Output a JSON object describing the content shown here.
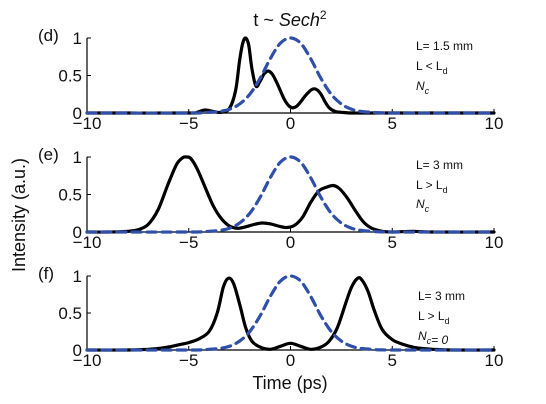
{
  "figure": {
    "title_prefix": "t ~ ",
    "title_italic": "Sech",
    "title_sup": "2",
    "ylabel": "Intensity (a.u.)",
    "xlabel": "Time (ps)"
  },
  "colors": {
    "solid": "#000000",
    "dashed": "#2f4fa8",
    "axis": "#000000"
  },
  "chart_data": [
    {
      "type": "line",
      "panel_label": "(d)",
      "annotation": [
        {
          "parts": [
            {
              "t": "L= 1.5 mm"
            }
          ]
        },
        {
          "parts": [
            {
              "t": "L < L"
            },
            {
              "t": "d",
              "sub": true
            }
          ]
        },
        {
          "parts": [
            {
              "t": "N",
              "italic": true
            },
            {
              "t": "c",
              "sub": true,
              "italic": true
            }
          ]
        }
      ],
      "xlim": [
        -10,
        10
      ],
      "ylim": [
        0,
        1
      ],
      "xticks": [
        -10,
        -5,
        0,
        5,
        10
      ],
      "yticks": [
        0,
        0.5,
        1
      ],
      "xtick_labels": [
        "−10",
        "−5",
        "0",
        "5",
        "10"
      ],
      "ytick_labels": [
        "0",
        "0.5",
        "1"
      ],
      "series": [
        {
          "style": "solid",
          "x": [
            -10,
            -5,
            -4.6,
            -4.2,
            -3.8,
            -3.4,
            -3.0,
            -2.7,
            -2.5,
            -2.35,
            -2.2,
            -2.05,
            -1.9,
            -1.7,
            -1.5,
            -1.3,
            -1.1,
            -0.9,
            -0.7,
            -0.5,
            -0.3,
            -0.1,
            0.1,
            0.3,
            0.5,
            0.7,
            0.9,
            1.1,
            1.3,
            1.5,
            1.7,
            1.9,
            2.2,
            2.5,
            3,
            4,
            10
          ],
          "y": [
            0,
            0,
            0.01,
            0.04,
            0.02,
            0.01,
            0.06,
            0.3,
            0.7,
            0.93,
            1.0,
            0.9,
            0.6,
            0.36,
            0.42,
            0.52,
            0.56,
            0.52,
            0.42,
            0.3,
            0.18,
            0.1,
            0.07,
            0.09,
            0.15,
            0.22,
            0.28,
            0.32,
            0.31,
            0.25,
            0.15,
            0.07,
            0.02,
            0.01,
            0,
            0,
            0
          ]
        },
        {
          "style": "dashed",
          "x": [
            -10,
            -5,
            -4,
            -3.5,
            -3,
            -2.5,
            -2,
            -1.5,
            -1,
            -0.5,
            0,
            0.5,
            1,
            1.5,
            2,
            2.5,
            3,
            3.5,
            4,
            5,
            10
          ],
          "y": [
            0,
            0,
            0.01,
            0.02,
            0.05,
            0.12,
            0.25,
            0.46,
            0.72,
            0.93,
            1.0,
            0.93,
            0.72,
            0.46,
            0.25,
            0.12,
            0.05,
            0.02,
            0.01,
            0,
            0
          ]
        }
      ]
    },
    {
      "type": "line",
      "panel_label": "(e)",
      "annotation": [
        {
          "parts": [
            {
              "t": "L= 3 mm"
            }
          ]
        },
        {
          "parts": [
            {
              "t": "L > L"
            },
            {
              "t": "d",
              "sub": true
            }
          ]
        },
        {
          "parts": [
            {
              "t": "N",
              "italic": true
            },
            {
              "t": "c",
              "sub": true,
              "italic": true
            }
          ]
        }
      ],
      "xlim": [
        -10,
        10
      ],
      "ylim": [
        0,
        1
      ],
      "xticks": [
        -10,
        -5,
        0,
        5,
        10
      ],
      "yticks": [
        0,
        0.5,
        1
      ],
      "xtick_labels": [
        "−10",
        "−5",
        "0",
        "5",
        "10"
      ],
      "ytick_labels": [
        "0",
        "0.5",
        "1"
      ],
      "series": [
        {
          "style": "solid",
          "x": [
            -10,
            -9,
            -8,
            -7.5,
            -7,
            -6.5,
            -6,
            -5.6,
            -5.3,
            -5.1,
            -4.9,
            -4.6,
            -4.2,
            -3.8,
            -3.4,
            -3,
            -2.6,
            -2.2,
            -1.8,
            -1.4,
            -1.0,
            -0.6,
            -0.2,
            0.2,
            0.6,
            1.0,
            1.4,
            1.8,
            2.1,
            2.4,
            2.8,
            3.2,
            3.6,
            4,
            4.5,
            5,
            6,
            7,
            10
          ],
          "y": [
            0,
            0,
            0.01,
            0.03,
            0.1,
            0.3,
            0.65,
            0.9,
            0.99,
            1.0,
            0.98,
            0.85,
            0.6,
            0.35,
            0.18,
            0.08,
            0.05,
            0.07,
            0.1,
            0.12,
            0.11,
            0.08,
            0.06,
            0.09,
            0.2,
            0.4,
            0.55,
            0.6,
            0.62,
            0.58,
            0.45,
            0.28,
            0.13,
            0.05,
            0.01,
            0,
            0.01,
            0,
            0
          ]
        },
        {
          "style": "dashed",
          "x": [
            -10,
            -5,
            -4,
            -3.5,
            -3,
            -2.5,
            -2,
            -1.5,
            -1,
            -0.5,
            0,
            0.5,
            1,
            1.5,
            2,
            2.5,
            3,
            3.5,
            4,
            5,
            10
          ],
          "y": [
            0,
            0,
            0.01,
            0.02,
            0.05,
            0.12,
            0.25,
            0.46,
            0.72,
            0.93,
            1.0,
            0.93,
            0.72,
            0.46,
            0.25,
            0.12,
            0.05,
            0.02,
            0.01,
            0,
            0
          ]
        }
      ]
    },
    {
      "type": "line",
      "panel_label": "(f)",
      "annotation": [
        {
          "parts": [
            {
              "t": "L= 3 mm"
            }
          ]
        },
        {
          "parts": [
            {
              "t": "L > L"
            },
            {
              "t": "d",
              "sub": true
            }
          ]
        },
        {
          "parts": [
            {
              "t": "N",
              "italic": true
            },
            {
              "t": "c",
              "sub": true,
              "italic": true
            },
            {
              "t": "= 0",
              "italic": true
            }
          ]
        }
      ],
      "xlim": [
        -10,
        10
      ],
      "ylim": [
        0,
        1
      ],
      "xticks": [
        -10,
        -5,
        0,
        5,
        10
      ],
      "yticks": [
        0,
        0.5,
        1
      ],
      "xtick_labels": [
        "−10",
        "−5",
        "0",
        "5",
        "10"
      ],
      "ytick_labels": [
        "0",
        "0.5",
        "1"
      ],
      "series": [
        {
          "style": "solid",
          "x": [
            -10,
            -8,
            -7,
            -6.5,
            -6,
            -5.5,
            -5,
            -4.5,
            -4,
            -3.6,
            -3.3,
            -3.05,
            -2.8,
            -2.5,
            -2.2,
            -1.9,
            -1.5,
            -1.0,
            -0.5,
            0,
            0.5,
            1.0,
            1.5,
            1.9,
            2.3,
            2.7,
            3.0,
            3.3,
            3.5,
            3.8,
            4.1,
            4.5,
            5,
            5.5,
            6,
            6.5,
            7,
            8,
            10
          ],
          "y": [
            0,
            0,
            0.01,
            0.02,
            0.04,
            0.07,
            0.1,
            0.15,
            0.25,
            0.5,
            0.85,
            0.97,
            0.9,
            0.62,
            0.3,
            0.12,
            0.04,
            0.01,
            0.05,
            0.09,
            0.05,
            0.01,
            0.04,
            0.12,
            0.3,
            0.62,
            0.85,
            0.97,
            0.95,
            0.8,
            0.55,
            0.28,
            0.14,
            0.08,
            0.04,
            0.02,
            0.01,
            0,
            0
          ]
        },
        {
          "style": "dashed",
          "x": [
            -10,
            -5,
            -4,
            -3.5,
            -3,
            -2.5,
            -2,
            -1.5,
            -1,
            -0.5,
            0,
            0.5,
            1,
            1.5,
            2,
            2.5,
            3,
            3.5,
            4,
            5,
            10
          ],
          "y": [
            0,
            0,
            0.01,
            0.02,
            0.05,
            0.12,
            0.25,
            0.46,
            0.72,
            0.93,
            1.0,
            0.93,
            0.72,
            0.46,
            0.25,
            0.12,
            0.05,
            0.02,
            0.01,
            0,
            0
          ]
        }
      ]
    }
  ]
}
